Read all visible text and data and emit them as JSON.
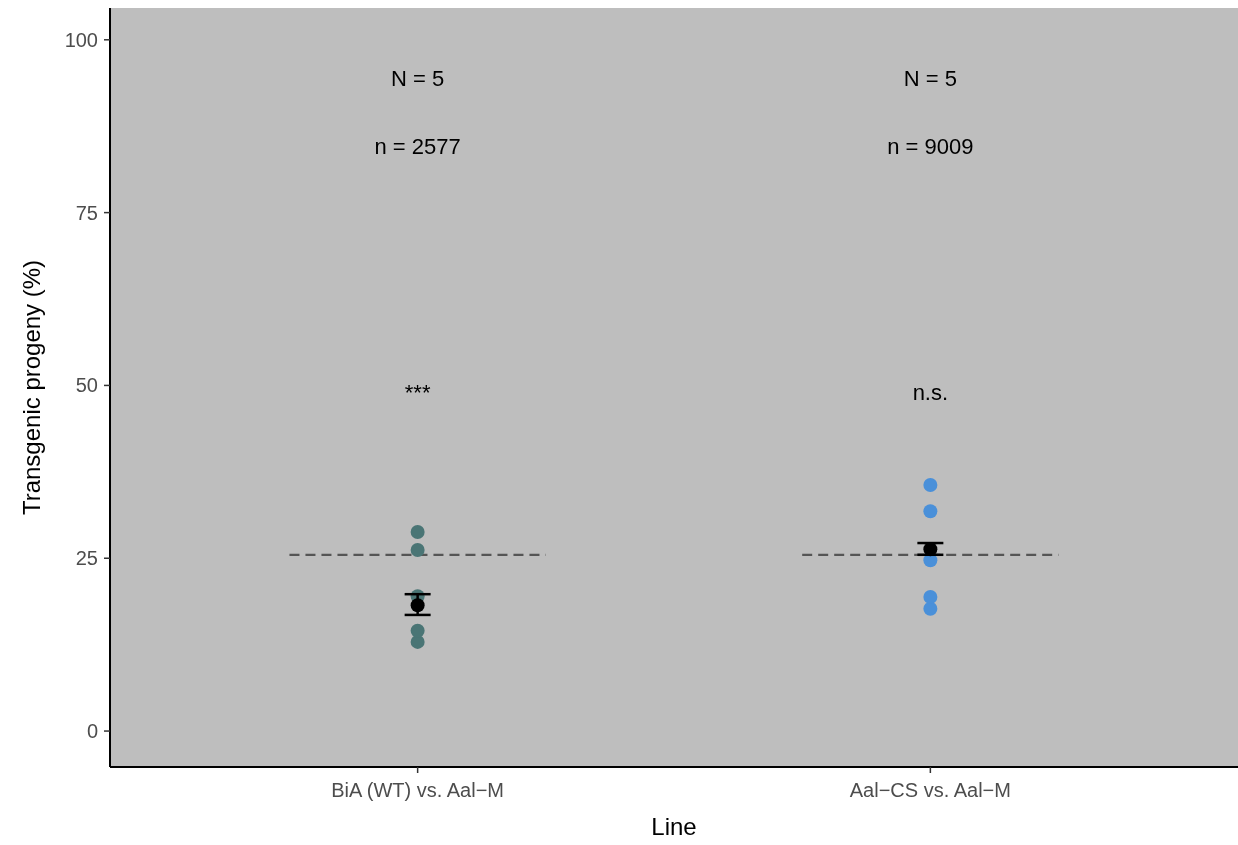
{
  "chart_data": {
    "type": "scatter",
    "xlabel": "Line",
    "ylabel": "Transgenic progeny (%)",
    "categories": [
      "BiA (WT) vs. Aal−M",
      "Aal−CS vs. Aal−M"
    ],
    "ylim": [
      -5.2,
      104.6
    ],
    "yticks": [
      0,
      25,
      50,
      75,
      100
    ],
    "marker": "circle",
    "grid": false,
    "ref_lines": [
      {
        "axis": "y",
        "value": 25.5,
        "color": "#555555",
        "line_style": "dashed"
      }
    ],
    "series": [
      {
        "color": "#4a7575",
        "x": [
          "BiA (WT) vs. Aal−M",
          "BiA (WT) vs. Aal−M",
          "BiA (WT) vs. Aal−M",
          "BiA (WT) vs. Aal−M",
          "BiA (WT) vs. Aal−M"
        ],
        "values": [
          12.9,
          14.5,
          19.5,
          28.8,
          26.2
        ]
      },
      {
        "color": "#4a90d9",
        "x": [
          "Aal−CS vs. Aal−M",
          "Aal−CS vs. Aal−M",
          "Aal−CS vs. Aal−M",
          "Aal−CS vs. Aal−M",
          "Aal−CS vs. Aal−M"
        ],
        "values": [
          24.7,
          17.7,
          31.8,
          19.4,
          35.6
        ]
      },
      {
        "color": "#000000",
        "x": [
          "BiA (WT) vs. Aal−M",
          "Aal−CS vs. Aal−M"
        ],
        "values": [
          18.2,
          26.3
        ],
        "errors": [
          [
            16.8,
            19.8
          ],
          [
            25.5,
            27.2
          ]
        ]
      }
    ],
    "annotations": [
      "N = 5",
      "n = 2577",
      "***",
      "N = 5",
      "n = 9009",
      "n.s."
    ]
  }
}
